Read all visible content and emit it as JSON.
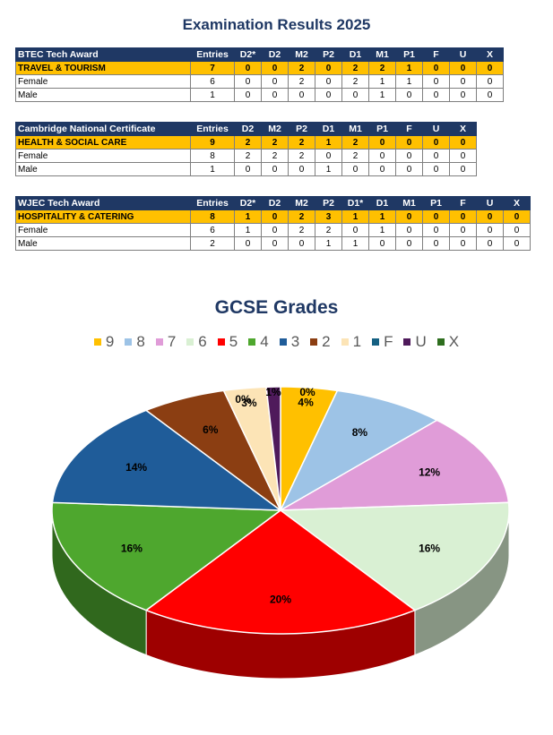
{
  "page": {
    "title": "Examination Results 2025"
  },
  "tables": [
    {
      "award": "BTEC Tech Award",
      "columns": [
        "Entries",
        "D2*",
        "D2",
        "M2",
        "P2",
        "D1",
        "M1",
        "P1",
        "F",
        "U",
        "X"
      ],
      "rows": [
        {
          "label": "TRAVEL & TOURISM",
          "values": [
            "7",
            "0",
            "0",
            "2",
            "0",
            "2",
            "2",
            "1",
            "0",
            "0",
            "0"
          ]
        },
        {
          "label": "Female",
          "values": [
            "6",
            "0",
            "0",
            "2",
            "0",
            "2",
            "1",
            "1",
            "0",
            "0",
            "0"
          ]
        },
        {
          "label": "Male",
          "values": [
            "1",
            "0",
            "0",
            "0",
            "0",
            "0",
            "1",
            "0",
            "0",
            "0",
            "0"
          ]
        }
      ]
    },
    {
      "award": "Cambridge National Certificate",
      "columns": [
        "Entries",
        "D2",
        "M2",
        "P2",
        "D1",
        "M1",
        "P1",
        "F",
        "U",
        "X"
      ],
      "rows": [
        {
          "label": "HEALTH & SOCIAL CARE",
          "values": [
            "9",
            "2",
            "2",
            "2",
            "1",
            "2",
            "0",
            "0",
            "0",
            "0"
          ]
        },
        {
          "label": "Female",
          "values": [
            "8",
            "2",
            "2",
            "2",
            "0",
            "2",
            "0",
            "0",
            "0",
            "0"
          ]
        },
        {
          "label": "Male",
          "values": [
            "1",
            "0",
            "0",
            "0",
            "1",
            "0",
            "0",
            "0",
            "0",
            "0"
          ]
        }
      ]
    },
    {
      "award": "WJEC Tech Award",
      "columns": [
        "Entries",
        "D2*",
        "D2",
        "M2",
        "P2",
        "D1*",
        "D1",
        "M1",
        "P1",
        "F",
        "U",
        "X"
      ],
      "rows": [
        {
          "label": "HOSPITALITY & CATERING",
          "values": [
            "8",
            "1",
            "0",
            "2",
            "3",
            "1",
            "1",
            "0",
            "0",
            "0",
            "0",
            "0"
          ]
        },
        {
          "label": "Female",
          "values": [
            "6",
            "1",
            "0",
            "2",
            "2",
            "0",
            "1",
            "0",
            "0",
            "0",
            "0",
            "0"
          ]
        },
        {
          "label": "Male",
          "values": [
            "2",
            "0",
            "0",
            "0",
            "1",
            "1",
            "0",
            "0",
            "0",
            "0",
            "0",
            "0"
          ]
        }
      ]
    }
  ],
  "chart_data": {
    "type": "pie",
    "title": "GCSE Grades",
    "legend_position": "top",
    "slices": [
      {
        "label": "9",
        "value": 4,
        "display": "4%",
        "color": "#ffc000"
      },
      {
        "label": "8",
        "value": 8,
        "display": "8%",
        "color": "#9dc3e6"
      },
      {
        "label": "7",
        "value": 12,
        "display": "12%",
        "color": "#e09cd8"
      },
      {
        "label": "6",
        "value": 16,
        "display": "16%",
        "color": "#d9f0d3"
      },
      {
        "label": "5",
        "value": 20,
        "display": "20%",
        "color": "#ff0000"
      },
      {
        "label": "4",
        "value": 16,
        "display": "16%",
        "color": "#4ea72e"
      },
      {
        "label": "3",
        "value": 14,
        "display": "14%",
        "color": "#1f5c99"
      },
      {
        "label": "2",
        "value": 6,
        "display": "6%",
        "color": "#8b3e12"
      },
      {
        "label": "1",
        "value": 3,
        "display": "3%",
        "color": "#fce4b6"
      },
      {
        "label": "F",
        "value": 0,
        "display": "0%",
        "color": "#156082"
      },
      {
        "label": "U",
        "value": 1,
        "display": "1%",
        "color": "#4f1a5b"
      },
      {
        "label": "X",
        "value": 0,
        "display": "0%",
        "color": "#2e6e1e"
      }
    ]
  }
}
